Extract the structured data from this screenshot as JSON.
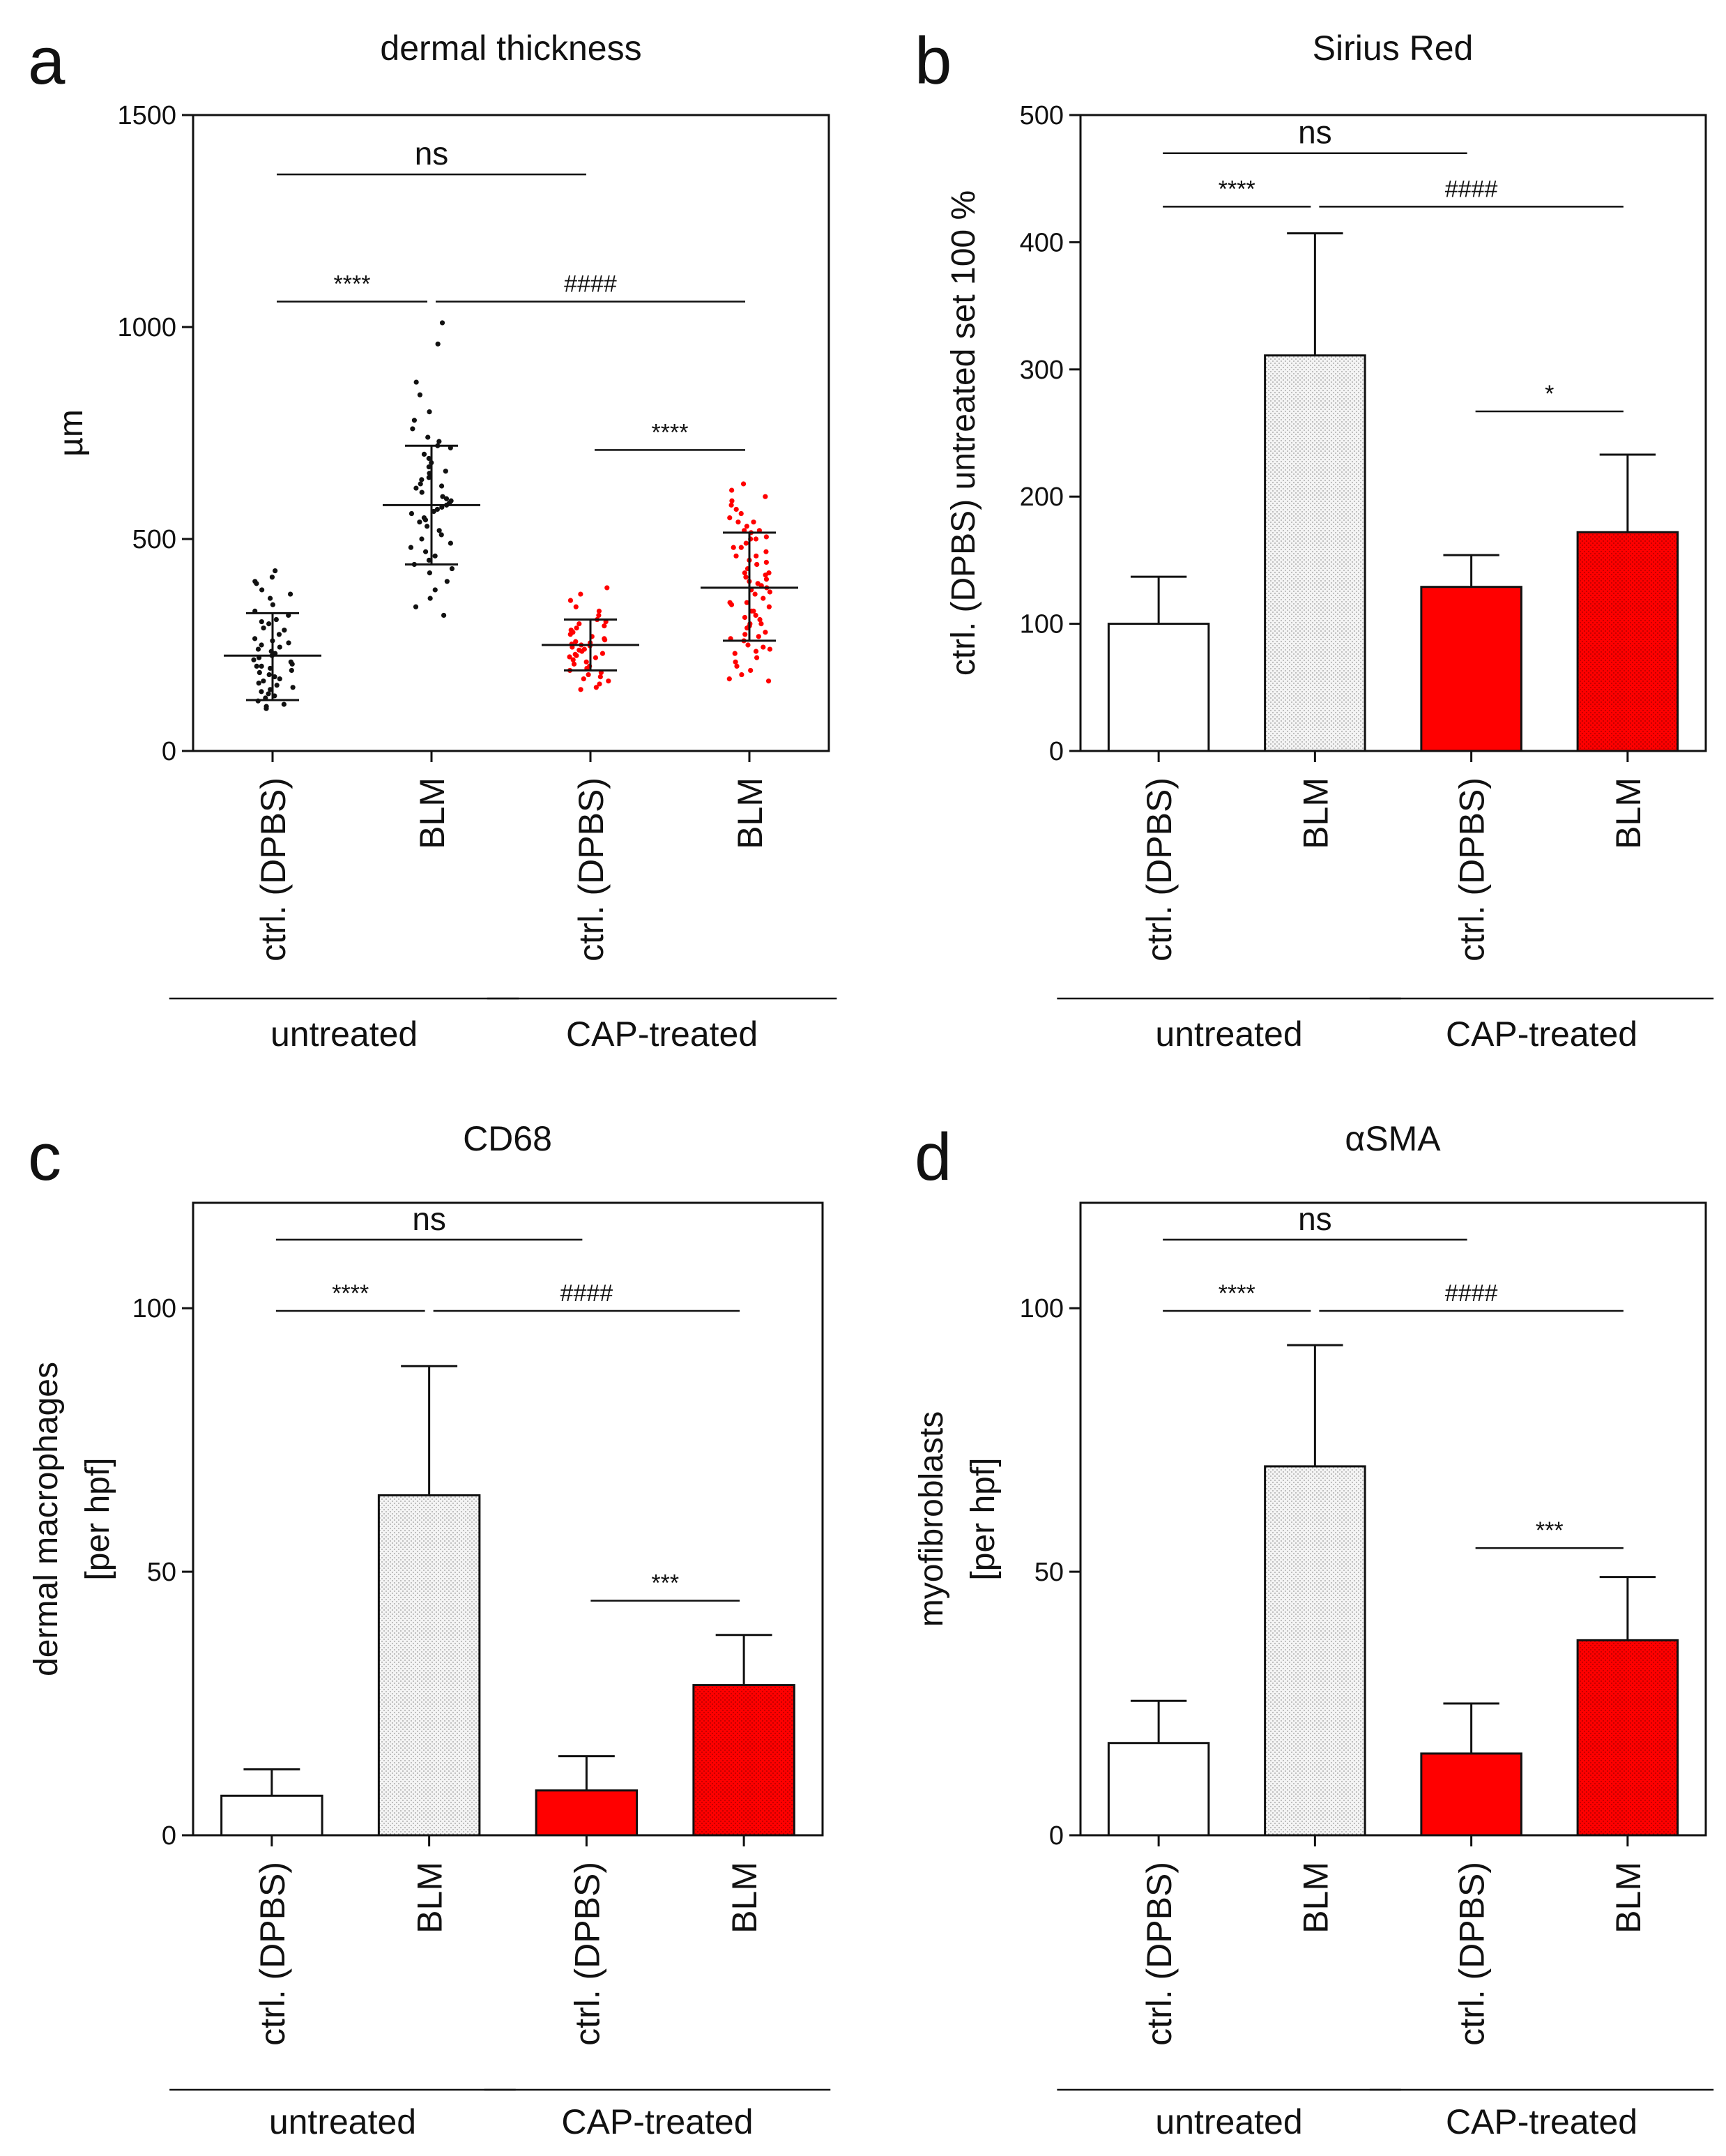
{
  "colors": {
    "red": "#ff0000",
    "black": "#111111",
    "grey_fill": "#f2f2f2"
  },
  "chart_data": [
    {
      "panel": "a",
      "type": "scatter",
      "title": "dermal thickness",
      "ylabel": "µm",
      "ylim": [
        0,
        1500
      ],
      "yticks": [
        0,
        500,
        1000,
        1500
      ],
      "categories": [
        "ctrl. (DPBS)",
        "BLM",
        "ctrl. (DPBS)",
        "BLM"
      ],
      "groups": [
        {
          "label": "untreated",
          "span": [
            0,
            1
          ]
        },
        {
          "label": "CAP-treated",
          "span": [
            2,
            3
          ]
        }
      ],
      "series": [
        {
          "name": "untreated ctrl. (DPBS)",
          "color": "black",
          "mean": 225,
          "sd_upper": 325,
          "sd_lower": 120,
          "points": [
            410,
            425,
            395,
            380,
            360,
            345,
            330,
            320,
            310,
            300,
            290,
            285,
            275,
            265,
            260,
            250,
            245,
            240,
            230,
            225,
            220,
            215,
            210,
            205,
            200,
            195,
            190,
            185,
            180,
            175,
            170,
            165,
            160,
            150,
            145,
            140,
            130,
            125,
            118,
            110,
            105,
            100,
            400,
            370,
            305,
            255,
            235,
            200,
            155,
            135
          ]
        },
        {
          "name": "untreated BLM",
          "color": "black",
          "mean": 580,
          "sd_upper": 720,
          "sd_lower": 440,
          "points": [
            1010,
            960,
            870,
            840,
            800,
            780,
            760,
            740,
            730,
            720,
            715,
            700,
            690,
            680,
            670,
            660,
            655,
            645,
            640,
            630,
            625,
            620,
            610,
            600,
            595,
            590,
            585,
            580,
            575,
            570,
            565,
            560,
            550,
            545,
            540,
            530,
            520,
            510,
            500,
            490,
            480,
            470,
            460,
            450,
            440,
            430,
            420,
            400,
            380,
            360,
            340,
            320
          ]
        },
        {
          "name": "CAP-treated ctrl. (DPBS)",
          "color": "red",
          "mean": 250,
          "sd_upper": 310,
          "sd_lower": 190,
          "points": [
            385,
            370,
            355,
            340,
            330,
            320,
            310,
            305,
            300,
            295,
            290,
            285,
            280,
            275,
            270,
            265,
            262,
            258,
            255,
            252,
            250,
            248,
            245,
            240,
            238,
            235,
            230,
            228,
            225,
            222,
            220,
            215,
            210,
            205,
            200,
            195,
            190,
            185,
            180,
            175,
            170,
            165,
            158,
            150,
            145
          ]
        },
        {
          "name": "CAP-treated BLM",
          "color": "red",
          "mean": 385,
          "sd_upper": 515,
          "sd_lower": 260,
          "points": [
            630,
            615,
            600,
            590,
            580,
            570,
            560,
            550,
            540,
            530,
            520,
            515,
            505,
            500,
            490,
            480,
            470,
            460,
            450,
            445,
            440,
            430,
            420,
            415,
            410,
            400,
            395,
            390,
            385,
            380,
            375,
            370,
            360,
            350,
            345,
            340,
            330,
            320,
            315,
            310,
            300,
            295,
            290,
            280,
            270,
            265,
            260,
            250,
            240,
            235,
            230,
            220,
            210,
            200,
            190,
            180,
            170,
            165,
            300,
            350,
            420,
            460,
            500,
            540,
            520,
            480,
            405,
            330,
            275,
            245
          ]
        }
      ],
      "annotations": [
        {
          "text": "ns",
          "from": 0,
          "to": 2,
          "y": 1360
        },
        {
          "text": "****",
          "from": 0,
          "to": 1,
          "y": 1060
        },
        {
          "text": "####",
          "from": 1,
          "to": 3,
          "y": 1060
        },
        {
          "text": "****",
          "from": 2,
          "to": 3,
          "y": 710
        }
      ]
    },
    {
      "panel": "b",
      "type": "bar",
      "title": "Sirius Red",
      "ylabel": "ctrl. (DPBS) untreated set 100 %",
      "ylim": [
        0,
        500
      ],
      "yticks": [
        0,
        100,
        200,
        300,
        400,
        500
      ],
      "categories": [
        "ctrl. (DPBS)",
        "BLM",
        "ctrl. (DPBS)",
        "BLM"
      ],
      "groups": [
        {
          "label": "untreated",
          "span": [
            0,
            1
          ]
        },
        {
          "label": "CAP-treated",
          "span": [
            2,
            3
          ]
        }
      ],
      "values": [
        100,
        311,
        129,
        172
      ],
      "errors": [
        37,
        96,
        25,
        61
      ],
      "fills": [
        "white",
        "grey",
        "red",
        "red-dotted"
      ],
      "annotations": [
        {
          "text": "ns",
          "from": 0,
          "to": 2,
          "y": 470
        },
        {
          "text": "****",
          "from": 0,
          "to": 1,
          "y": 428
        },
        {
          "text": "####",
          "from": 1,
          "to": 3,
          "y": 428
        },
        {
          "text": "*",
          "from": 2,
          "to": 3,
          "y": 267
        }
      ]
    },
    {
      "panel": "c",
      "type": "bar",
      "title": "CD68",
      "ylabel_lines": [
        "dermal macrophages",
        "[per hpf]"
      ],
      "ylim": [
        0,
        120
      ],
      "yticks": [
        0,
        50,
        100
      ],
      "categories": [
        "ctrl. (DPBS)",
        "BLM",
        "ctrl. (DPBS)",
        "BLM"
      ],
      "groups": [
        {
          "label": "untreated",
          "span": [
            0,
            1
          ]
        },
        {
          "label": "CAP-treated",
          "span": [
            2,
            3
          ]
        }
      ],
      "values": [
        7.5,
        64.5,
        8.5,
        28.5
      ],
      "errors": [
        5,
        24.5,
        6.5,
        9.5
      ],
      "fills": [
        "white",
        "grey",
        "red",
        "red-dotted"
      ],
      "annotations": [
        {
          "text": "ns",
          "from": 0,
          "to": 2,
          "y": 113
        },
        {
          "text": "****",
          "from": 0,
          "to": 1,
          "y": 99.5
        },
        {
          "text": "####",
          "from": 1,
          "to": 3,
          "y": 99.5
        },
        {
          "text": "***",
          "from": 2,
          "to": 3,
          "y": 44.5
        }
      ]
    },
    {
      "panel": "d",
      "type": "bar",
      "title": "αSMA",
      "ylabel_lines": [
        "myofibroblasts",
        "[per hpf]"
      ],
      "ylim": [
        0,
        120
      ],
      "yticks": [
        0,
        50,
        100
      ],
      "categories": [
        "ctrl. (DPBS)",
        "BLM",
        "ctrl. (DPBS)",
        "BLM"
      ],
      "groups": [
        {
          "label": "untreated",
          "span": [
            0,
            1
          ]
        },
        {
          "label": "CAP-treated",
          "span": [
            2,
            3
          ]
        }
      ],
      "values": [
        17.5,
        70,
        15.5,
        37
      ],
      "errors": [
        8,
        23,
        9.5,
        12
      ],
      "fills": [
        "white",
        "grey",
        "red",
        "red-dotted"
      ],
      "annotations": [
        {
          "text": "ns",
          "from": 0,
          "to": 2,
          "y": 113
        },
        {
          "text": "****",
          "from": 0,
          "to": 1,
          "y": 99.5
        },
        {
          "text": "####",
          "from": 1,
          "to": 3,
          "y": 99.5
        },
        {
          "text": "***",
          "from": 2,
          "to": 3,
          "y": 54.5
        }
      ]
    }
  ]
}
